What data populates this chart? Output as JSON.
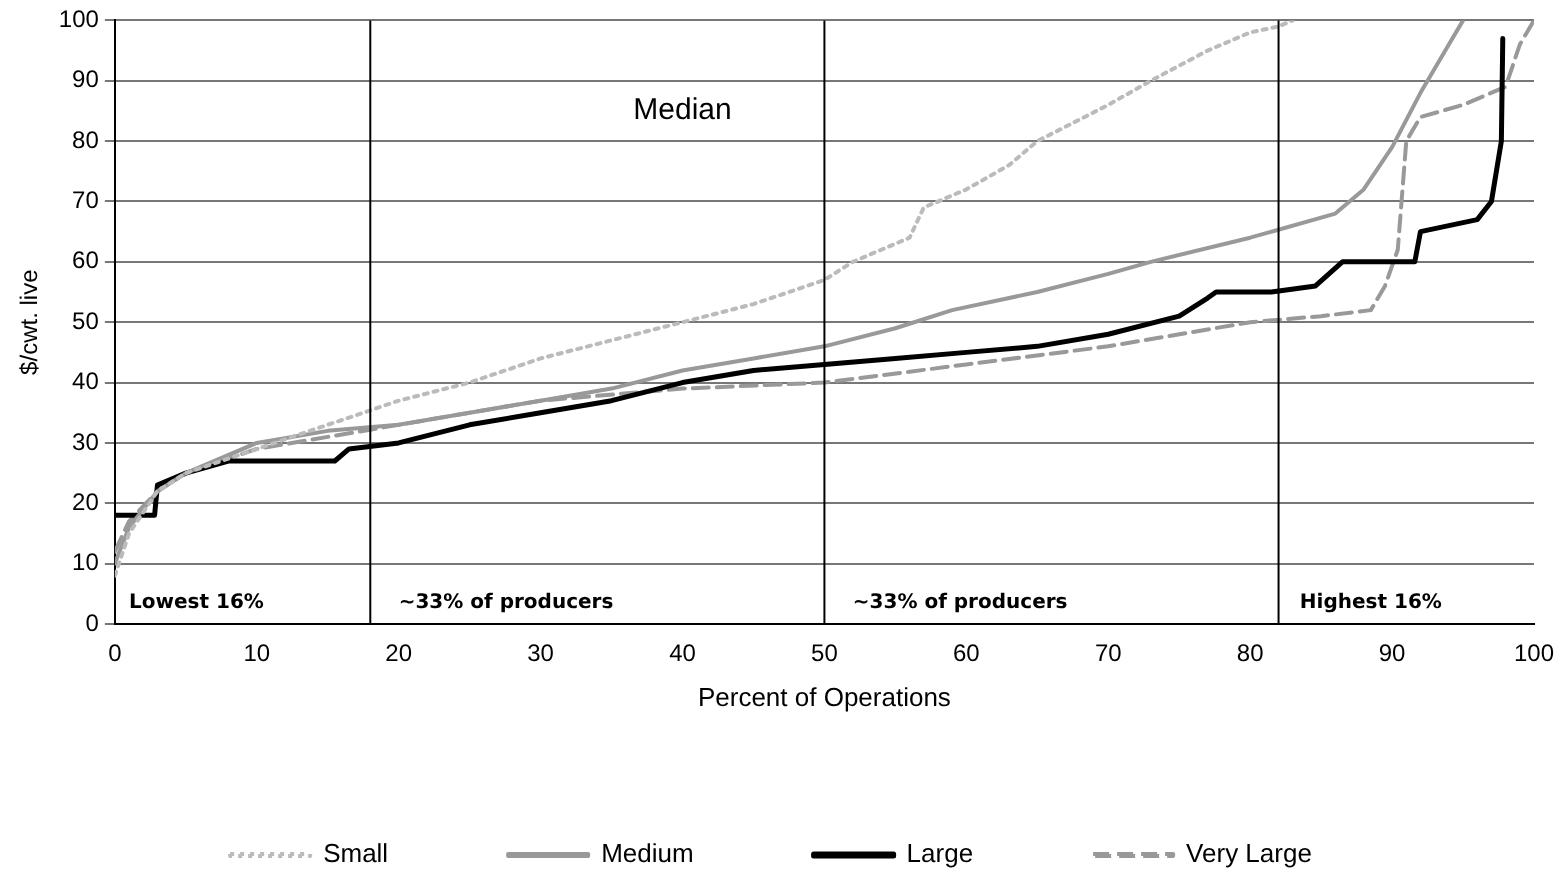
{
  "chart_data": {
    "type": "line",
    "xlabel": "Percent of Operations",
    "ylabel": "$/cwt. live",
    "xlim": [
      0,
      100
    ],
    "xticks": [
      0,
      10,
      20,
      30,
      40,
      50,
      60,
      70,
      80,
      90,
      100
    ],
    "ylim": [
      0,
      100
    ],
    "yticks": [
      0,
      10,
      20,
      30,
      40,
      50,
      60,
      70,
      80,
      90,
      100
    ],
    "grid": "y",
    "legend": "bottom",
    "marker": "none",
    "ref_lines": [
      {
        "axis": "x",
        "value": 18,
        "color": "#000000"
      },
      {
        "axis": "x",
        "value": 50,
        "color": "#000000"
      },
      {
        "axis": "x",
        "value": 82,
        "color": "#000000"
      }
    ],
    "annotations": [
      "Median",
      "Lowest 16%",
      "~33% of producers",
      "~33% of producers",
      "Highest 16%"
    ],
    "series": [
      {
        "name": "Small",
        "color": "#bbbbbb",
        "line_style": "dotted",
        "x": [
          0,
          1,
          3,
          5,
          10,
          15,
          20,
          25,
          30,
          35,
          40,
          45,
          50,
          52,
          56,
          57,
          60,
          63,
          65,
          70,
          73,
          77,
          80,
          82,
          83
        ],
        "values": [
          8,
          15,
          22,
          25,
          29,
          33,
          37,
          40,
          44,
          47,
          50,
          53,
          57,
          60,
          64,
          69,
          72,
          76,
          80,
          86,
          90,
          95,
          98,
          99,
          100
        ]
      },
      {
        "name": "Medium",
        "color": "#999999",
        "line_style": "solid",
        "x": [
          0,
          1,
          3,
          5,
          10,
          15,
          20,
          25,
          30,
          35,
          40,
          45,
          50,
          55,
          59,
          65,
          70,
          73,
          80,
          86,
          88,
          90,
          92,
          94,
          95
        ],
        "values": [
          10,
          16,
          22,
          25,
          30,
          32,
          33,
          35,
          37,
          39,
          42,
          44,
          46,
          49,
          52,
          55,
          58,
          60,
          64,
          68,
          72,
          79,
          88,
          96,
          100
        ]
      },
      {
        "name": "Large",
        "color": "#000000",
        "line_style": "solid",
        "x": [
          0,
          2.8,
          3,
          5,
          8,
          15.5,
          16.5,
          20,
          25,
          30,
          35,
          40,
          45,
          50,
          55,
          60,
          65,
          70,
          75,
          77,
          77.6,
          81.5,
          84.6,
          86.5,
          91.6,
          92,
          96,
          97,
          97.7,
          97.8
        ],
        "values": [
          18,
          18,
          23,
          25,
          27,
          27,
          29,
          30,
          33,
          35,
          37,
          40,
          42,
          43,
          44,
          45,
          46,
          48,
          51,
          54,
          55,
          55,
          56,
          60,
          60,
          65,
          67,
          70,
          80,
          97
        ]
      },
      {
        "name": "Very Large",
        "color": "#999999",
        "line_style": "dashed",
        "x": [
          0,
          1,
          3,
          5,
          10,
          15,
          20,
          25,
          30,
          40,
          50,
          60,
          70,
          80,
          85,
          88.5,
          89.5,
          90.4,
          91,
          92,
          95,
          98,
          99,
          100
        ],
        "values": [
          12,
          17,
          22,
          25,
          29,
          31,
          33,
          35,
          37,
          39,
          40,
          43,
          46,
          50,
          51,
          52,
          56,
          62,
          80,
          84,
          86,
          89,
          96,
          100
        ]
      }
    ]
  }
}
